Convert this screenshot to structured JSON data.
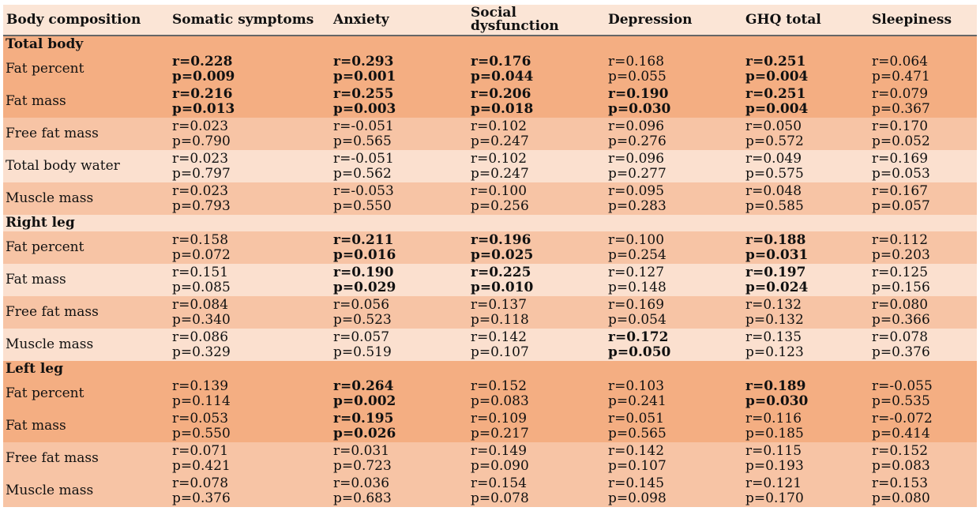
{
  "headers": [
    "Body composition",
    "Somatic symptoms",
    "Anxiety",
    "Social dysfunction",
    "Depression",
    "GHQ total",
    "Sleepiness"
  ],
  "sections": [
    {
      "title": "Total body",
      "rows": [
        {
          "label": "Fat percent",
          "cells": [
            {
              "r": "r=0.228",
              "p": "p=0.009",
              "bold": true
            },
            {
              "r": "r=0.293",
              "p": "p=0.001",
              "bold": true
            },
            {
              "r": "r=0.176",
              "p": "p=0.044",
              "bold": true
            },
            {
              "r": "r=0.168",
              "p": "p=0.055",
              "bold": false
            },
            {
              "r": "r=0.251",
              "p": "p=0.004",
              "bold": true
            },
            {
              "r": "r=0.064",
              "p": "p=0.471",
              "bold": false
            }
          ]
        },
        {
          "label": "Fat mass",
          "cells": [
            {
              "r": "r=0.216",
              "p": "p=0.013",
              "bold": true
            },
            {
              "r": "r=0.255",
              "p": "p=0.003",
              "bold": true
            },
            {
              "r": "r=0.206",
              "p": "p=0.018",
              "bold": true
            },
            {
              "r": "r=0.190",
              "p": "p=0.030",
              "bold": true
            },
            {
              "r": "r=0.251",
              "p": "p=0.004",
              "bold": true
            },
            {
              "r": "r=0.079",
              "p": "p=0.367",
              "bold": false
            }
          ]
        },
        {
          "label": "Free fat mass",
          "cells": [
            {
              "r": "r=0.023",
              "p": "p=0.790",
              "bold": false
            },
            {
              "r": "r=-0.051",
              "p": "p=0.565",
              "bold": false
            },
            {
              "r": "r=0.102",
              "p": "p=0.247",
              "bold": false
            },
            {
              "r": "r=0.096",
              "p": "p=0.276",
              "bold": false
            },
            {
              "r": "r=0.050",
              "p": "p=0.572",
              "bold": false
            },
            {
              "r": "r=0.170",
              "p": "p=0.052",
              "bold": false
            }
          ]
        },
        {
          "label": "Total body water",
          "cells": [
            {
              "r": "r=0.023",
              "p": "p=0.797",
              "bold": false
            },
            {
              "r": "r=-0.051",
              "p": "p=0.562",
              "bold": false
            },
            {
              "r": "r=0.102",
              "p": "p=0.247",
              "bold": false
            },
            {
              "r": "r=0.096",
              "p": "p=0.277",
              "bold": false
            },
            {
              "r": "r=0.049",
              "p": "p=0.575",
              "bold": false
            },
            {
              "r": "r=0.169",
              "p": "p=0.053",
              "bold": false
            }
          ]
        },
        {
          "label": "Muscle mass",
          "cells": [
            {
              "r": "r=0.023",
              "p": "p=0.793",
              "bold": false
            },
            {
              "r": "r=-0.053",
              "p": "p=0.550",
              "bold": false
            },
            {
              "r": "r=0.100",
              "p": "p=0.256",
              "bold": false
            },
            {
              "r": "r=0.095",
              "p": "p=0.283",
              "bold": false
            },
            {
              "r": "r=0.048",
              "p": "p=0.585",
              "bold": false
            },
            {
              "r": "r=0.167",
              "p": "p=0.057",
              "bold": false
            }
          ]
        }
      ]
    },
    {
      "title": "Right leg",
      "rows": [
        {
          "label": "Fat percent",
          "cells": [
            {
              "r": "r=0.158",
              "p": "p=0.072",
              "bold": false
            },
            {
              "r": "r=0.211",
              "p": "p=0.016",
              "bold": true
            },
            {
              "r": "r=0.196",
              "p": "p=0.025",
              "bold": true
            },
            {
              "r": "r=0.100",
              "p": "p=0.254",
              "bold": false
            },
            {
              "r": "r=0.188",
              "p": "p=0.031",
              "bold": true
            },
            {
              "r": "r=0.112",
              "p": "p=0.203",
              "bold": false
            }
          ]
        },
        {
          "label": "Fat mass",
          "cells": [
            {
              "r": "r=0.151",
              "p": "p=0.085",
              "bold": false
            },
            {
              "r": "r=0.190",
              "p": "p=0.029",
              "bold": true
            },
            {
              "r": "r=0.225",
              "p": "p=0.010",
              "bold": true
            },
            {
              "r": "r=0.127",
              "p": "p=0.148",
              "bold": false
            },
            {
              "r": "r=0.197",
              "p": "p=0.024",
              "bold": true
            },
            {
              "r": "r=0.125",
              "p": "p=0.156",
              "bold": false
            }
          ]
        },
        {
          "label": "Free fat mass",
          "cells": [
            {
              "r": "r=0.084",
              "p": " p=0.340",
              "bold": false
            },
            {
              "r": "r=0.056",
              "p": "p=0.523",
              "bold": false
            },
            {
              "r": "r=0.137",
              "p": "p=0.118",
              "bold": false
            },
            {
              "r": "r=0.169",
              "p": "p=0.054",
              "bold": false
            },
            {
              "r": "r=0.132",
              "p": "p=0.132",
              "bold": false
            },
            {
              "r": "r=0.080",
              "p": "p=0.366",
              "bold": false
            }
          ]
        },
        {
          "label": "Muscle mass",
          "cells": [
            {
              "r": "r=0.086",
              "p": "p=0.329",
              "bold": false
            },
            {
              "r": "r=0.057",
              "p": "p=0.519",
              "bold": false
            },
            {
              "r": "r=0.142",
              "p": "p=0.107",
              "bold": false
            },
            {
              "r": "r=0.172",
              "p": "p=0.050",
              "bold": true
            },
            {
              "r": "r=0.135",
              "p": "p=0.123",
              "bold": false
            },
            {
              "r": "r=0.078",
              "p": "p=0.376",
              "bold": false
            }
          ]
        }
      ]
    },
    {
      "title": "Left leg",
      "rows": [
        {
          "label": "Fat percent",
          "cells": [
            {
              "r": "r=0.139",
              "p": "p=0.114",
              "bold": false
            },
            {
              "r": "r=0.264",
              "p": "p=0.002",
              "bold": true
            },
            {
              "r": "r=0.152",
              "p": "p=0.083",
              "bold": false
            },
            {
              "r": "r=0.103",
              "p": "p=0.241",
              "bold": false
            },
            {
              "r": "r=0.189",
              "p": "p=0.030",
              "bold": true
            },
            {
              "r": "r=-0.055",
              "p": "p=0.535",
              "bold": false
            }
          ]
        },
        {
          "label": "Fat mass",
          "cells": [
            {
              "r": "r=0.053",
              "p": "p=0.550",
              "bold": false
            },
            {
              "r": "r=0.195",
              "p": "p=0.026",
              "bold": true
            },
            {
              "r": "r=0.109",
              "p": "p=0.217",
              "bold": false
            },
            {
              "r": "r=0.051",
              "p": "p=0.565",
              "bold": false
            },
            {
              "r": "r=0.116",
              "p": "p=0.185",
              "bold": false
            },
            {
              "r": "r=-0.072",
              "p": "p=0.414",
              "bold": false
            }
          ]
        },
        {
          "label": "Free fat mass",
          "cells": [
            {
              "r": "r=0.071",
              "p": "p=0.421",
              "bold": false
            },
            {
              "r": "r=0.031",
              "p": "p=0.723",
              "bold": false
            },
            {
              "r": "r=0.149",
              "p": "p=0.090",
              "bold": false
            },
            {
              "r": "r=0.142",
              "p": "p=0.107",
              "bold": false
            },
            {
              "r": "r=0.115",
              "p": "p=0.193",
              "bold": false
            },
            {
              "r": "r=0.152",
              "p": "p=0.083",
              "bold": false
            }
          ]
        },
        {
          "label": "Muscle mass",
          "cells": [
            {
              "r": "r=0.078",
              "p": "p=0.376",
              "bold": false
            },
            {
              "r": "r=0.036",
              "p": "p=0.683",
              "bold": false
            },
            {
              "r": "r=0.154",
              "p": "p=0.078",
              "bold": false
            },
            {
              "r": "r=0.145",
              "p": "p=0.098",
              "bold": false
            },
            {
              "r": "r=0.121",
              "p": "p=0.170",
              "bold": false
            },
            {
              "r": "r=0.153",
              "p": "p=0.080",
              "bold": false
            }
          ]
        }
      ]
    }
  ]
}
